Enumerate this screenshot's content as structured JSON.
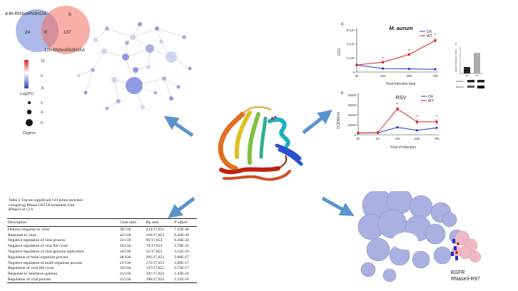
{
  "venn": {
    "panel_label": "a",
    "set_left": "4h-RN3vsRN3H15A",
    "set_right": "12h-RN3vsRN3H15A",
    "left_only": "24",
    "overlap": "8",
    "right_only": "137",
    "color_left": "#6a7fd6",
    "color_right": "#f07060"
  },
  "network": {
    "panel_label": "b",
    "colorbar_ticks": [
      "10",
      "0",
      "-6"
    ],
    "colorbar_title": "Log2FC",
    "degree_legend": [
      "2",
      "4",
      "6"
    ],
    "degree_title": "Degree"
  },
  "maurum_chart": {
    "panel_label": "a",
    "title": "M. aurum",
    "ylabel": "CFU",
    "xlabel": "Post-infection time",
    "chart_data": {
      "type": "line",
      "title": "M. aurum",
      "xlabel": "Post-infection time",
      "ylabel": "CFU",
      "categories": [
        "0h",
        "24h",
        "48h",
        "72h"
      ],
      "y_ticks": [
        "0",
        "2×10⁶",
        "4×10⁶",
        "6×10⁶"
      ],
      "ylim": [
        0,
        6000000
      ],
      "legend_position": "top-right",
      "series": [
        {
          "name": "OX",
          "color": "#2233cc",
          "values": [
            1000000,
            500000,
            450000,
            400000
          ]
        },
        {
          "name": "WT",
          "color": "#e0201b",
          "values": [
            1000000,
            1400000,
            2500000,
            4500000
          ],
          "errors": [
            0,
            150000,
            150000,
            400000
          ]
        }
      ],
      "annotations": [
        "**",
        "**",
        "**"
      ]
    }
  },
  "rsv_chart": {
    "panel_label": "b",
    "title": "RSV",
    "ylabel": "TCID50/ml",
    "xlabel": "Post of infection",
    "chart_data": {
      "type": "line",
      "title": "RSV",
      "xlabel": "Post of infection",
      "ylabel": "TCID50/ml",
      "categories": [
        "0h",
        "4h",
        "24h",
        "48h",
        "72h"
      ],
      "y_ticks": [
        "0",
        "10000",
        "20000",
        "30000",
        "40000"
      ],
      "ylim": [
        0,
        40000
      ],
      "legend_position": "top-right",
      "series": [
        {
          "name": "OX",
          "color": "#2233cc",
          "values": [
            1800,
            2000,
            7500,
            4500,
            7000
          ],
          "errors": [
            0,
            0,
            1000,
            0,
            0
          ]
        },
        {
          "name": "WT",
          "color": "#e0201b",
          "values": [
            1800,
            2200,
            26000,
            13000,
            13000
          ],
          "errors": [
            0,
            0,
            2000,
            2500,
            2500
          ]
        }
      ],
      "annotations": [
        "**",
        "**",
        "**"
      ]
    }
  },
  "small_bar": {
    "panel_label": "c",
    "ylabel": "Relative RNase3 mRNA",
    "chart_data": {
      "type": "bar",
      "categories": [
        "WT",
        "OX"
      ],
      "values": [
        1,
        3.2
      ]
    },
    "blot_labels": [
      "GAPDH",
      "RNase3"
    ]
  },
  "table": {
    "caption": "Table 2 Top ten significant GO terms enriched comparing RNase3-H15A treatment with RNase3 at 12 h",
    "headers": [
      "Description",
      "Gene ratio",
      "Bg ratio",
      "P adjust"
    ],
    "rows": [
      [
        "Defence response to virus",
        "39/130",
        "224/17,653",
        "7.32E-40"
      ],
      [
        "Response to virus",
        "42/130",
        "310/17,653",
        "8.42E-39"
      ],
      [
        "Negative regulation of viral process",
        "21/130",
        "95/17,653",
        "9.30E-23"
      ],
      [
        "Negative regulation of viral life cycle",
        "19/130",
        "79/17,653",
        "2.78E-21"
      ],
      [
        "Negative regulation of viral genome replication",
        "16/130",
        "55/17,653",
        "3.21E-19"
      ],
      [
        "Regulation of multi-organism process",
        "28/130",
        "391/17,653",
        "2.08E-17"
      ],
      [
        "Negative regulation of multi-organism process",
        "21/130",
        "172/17,653",
        "2.08E-17"
      ],
      [
        "Regulation of viral life cycle",
        "19/130",
        "137/17,653",
        "9.75E-17"
      ],
      [
        "Response to interferon-gamma",
        "21/130",
        "191/17,653",
        "1.43E-16"
      ],
      [
        "Regulation of viral process",
        "21/130",
        "196/17,653",
        "2.21E-16"
      ]
    ]
  },
  "docking": {
    "label_line1": "EGFR",
    "label_line2": "RNase3-R97"
  },
  "colors": {
    "arrow": "#5b93cc"
  }
}
